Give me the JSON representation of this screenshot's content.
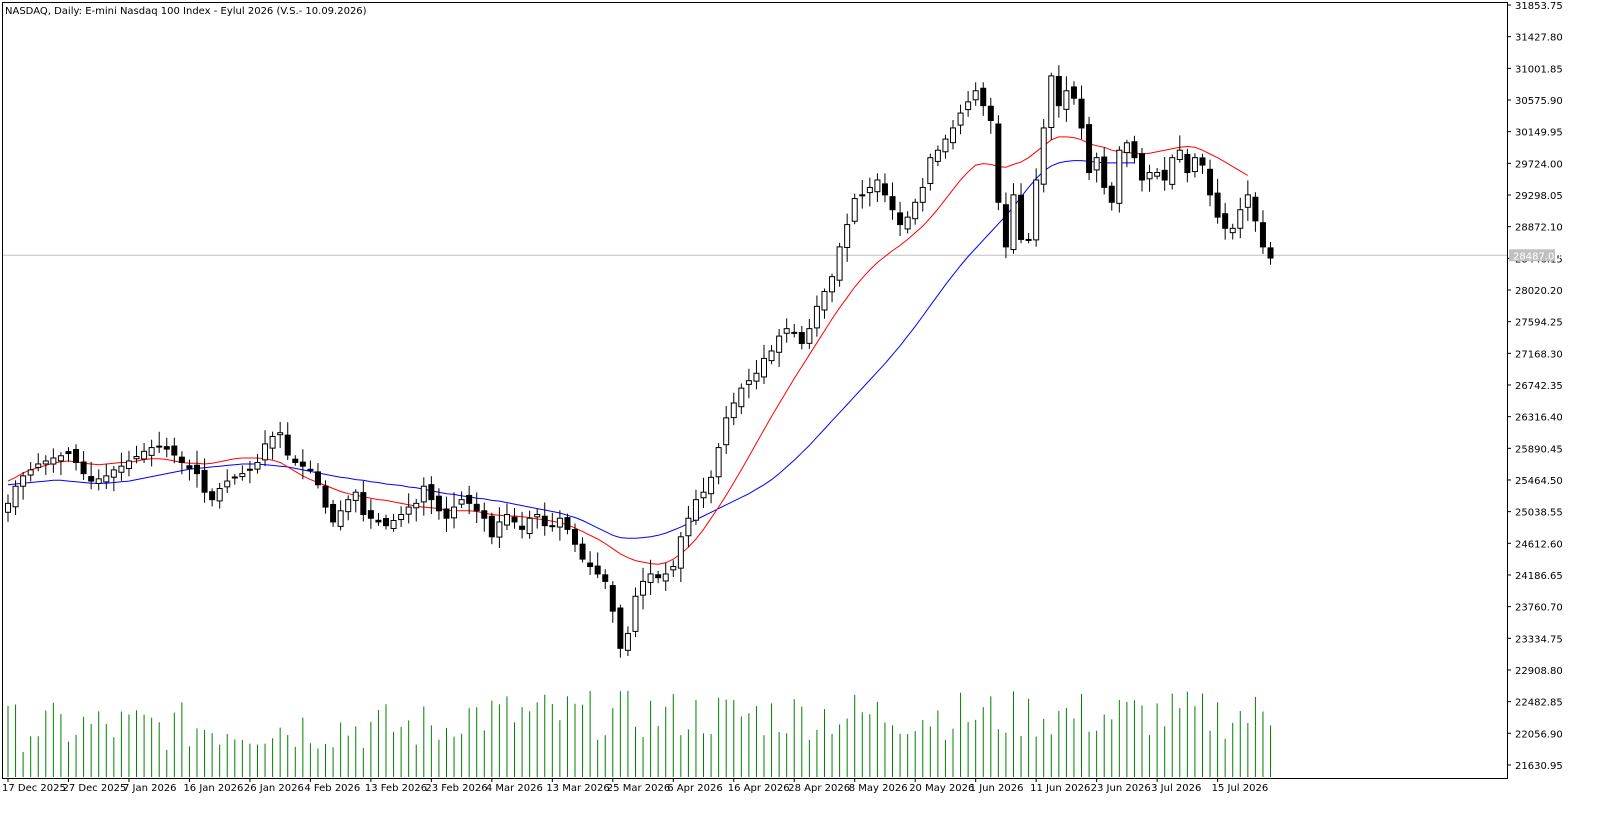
{
  "header": {
    "title": "NASDAQ, Daily:  E-mini Nasdaq 100 Index - Eylul 2026 (V.S.- 10.09.2026)"
  },
  "colors": {
    "background": "#ffffff",
    "frame": "#000000",
    "candle_up_fill": "#ffffff",
    "candle_down_fill": "#000000",
    "ma_fast": "#ff0000",
    "ma_slow": "#0000ff",
    "volume": "#008000",
    "last_price_line": "#c0c0c0",
    "last_price_label": "#c0c0c0"
  },
  "chart_data": {
    "type": "candlestick",
    "timeframe": "Daily",
    "ylim": [
      21200,
      31853.75
    ],
    "y_ticks": [
      "31853.75",
      "31427.80",
      "31001.85",
      "30575.90",
      "30149.95",
      "29724.00",
      "29298.05",
      "28872.10",
      "28446.15",
      "28020.20",
      "27594.25",
      "27168.30",
      "26742.35",
      "26316.40",
      "25890.45",
      "25464.50",
      "25038.55",
      "24612.60",
      "24186.65",
      "23760.70",
      "23334.75",
      "22908.80",
      "22482.85",
      "22056.90",
      "21630.95"
    ],
    "x_ticks": [
      {
        "label": "17 Dec 2025",
        "index": 0
      },
      {
        "label": "27 Dec 2025",
        "index": 8
      },
      {
        "label": "7 Jan 2026",
        "index": 16
      },
      {
        "label": "16 Jan 2026",
        "index": 24
      },
      {
        "label": "26 Jan 2026",
        "index": 32
      },
      {
        "label": "4 Feb 2026",
        "index": 40
      },
      {
        "label": "13 Feb 2026",
        "index": 48
      },
      {
        "label": "23 Feb 2026",
        "index": 56
      },
      {
        "label": "4 Mar 2026",
        "index": 64
      },
      {
        "label": "13 Mar 2026",
        "index": 72
      },
      {
        "label": "25 Mar 2026",
        "index": 80
      },
      {
        "label": "6 Apr 2026",
        "index": 88
      },
      {
        "label": "16 Apr 2026",
        "index": 96
      },
      {
        "label": "28 Apr 2026",
        "index": 104
      },
      {
        "label": "8 May 2026",
        "index": 112
      },
      {
        "label": "20 May 2026",
        "index": 120
      },
      {
        "label": "1 Jun 2026",
        "index": 128
      },
      {
        "label": "11 Jun 2026",
        "index": 136
      },
      {
        "label": "23 Jun 2026",
        "index": 144
      },
      {
        "label": "3 Jul 2026",
        "index": 152
      },
      {
        "label": "15 Jul 2026",
        "index": 160
      }
    ],
    "last_price": "28487.00",
    "closes": [
      25150,
      25380,
      25520,
      25600,
      25680,
      25720,
      25760,
      25790,
      25820,
      25700,
      25550,
      25450,
      25480,
      25520,
      25600,
      25650,
      25720,
      25780,
      25850,
      25900,
      25920,
      25880,
      25800,
      25700,
      25620,
      25550,
      25300,
      25200,
      25350,
      25450,
      25500,
      25550,
      25600,
      25700,
      25950,
      26050,
      26100,
      25800,
      25700,
      25650,
      25600,
      25400,
      25100,
      24900,
      25050,
      25200,
      25300,
      25000,
      24950,
      24900,
      24850,
      24920,
      25000,
      25100,
      25150,
      25380,
      25200,
      25050,
      24950,
      25100,
      25200,
      25150,
      25050,
      24950,
      24700,
      24900,
      25000,
      24900,
      24800,
      24950,
      25000,
      24850,
      24850,
      24950,
      24800,
      24600,
      24400,
      24300,
      24200,
      24100,
      23700,
      23200,
      23400,
      23900,
      24100,
      24200,
      24150,
      24200,
      24300,
      24700,
      24950,
      25200,
      25300,
      25500,
      25900,
      26300,
      26500,
      26700,
      26800,
      26900,
      27100,
      27200,
      27400,
      27500,
      27450,
      27300,
      27500,
      27800,
      28000,
      28200,
      28600,
      28900,
      29250,
      29300,
      29400,
      29500,
      29300,
      29100,
      28900,
      29000,
      29200,
      29400,
      29800,
      29900,
      30050,
      30200,
      30400,
      30550,
      30700,
      30500,
      30300,
      29200,
      28600,
      29300,
      28700,
      28700,
      29500,
      30200,
      30900,
      30500,
      30700,
      30600,
      30200,
      29600,
      29800,
      29400,
      29200,
      29900,
      30000,
      29800,
      29500,
      29600,
      29600,
      29500,
      29800,
      29900,
      29600,
      29800,
      29700,
      29300,
      29000,
      28850,
      28850,
      29100,
      29300,
      28950,
      28600,
      28450
    ],
    "ma_fast": [
      25450,
      25500,
      25560,
      25600,
      25630,
      25660,
      25690,
      25710,
      25720,
      25710,
      25690,
      25680,
      25670,
      25680,
      25690,
      25700,
      25700,
      25720,
      25740,
      25750,
      25750,
      25740,
      25720,
      25700,
      25690,
      25690,
      25680,
      25690,
      25710,
      25730,
      25750,
      25760,
      25760,
      25760,
      25750,
      25730,
      25700,
      25640,
      25580,
      25520,
      25470,
      25430,
      25390,
      25350,
      25310,
      25280,
      25260,
      25240,
      25220,
      25200,
      25190,
      25170,
      25150,
      25130,
      25110,
      25100,
      25090,
      25080,
      25060,
      25050,
      25050,
      25050,
      25040,
      25020,
      25000,
      24990,
      24980,
      24980,
      24970,
      24960,
      24940,
      24930,
      24910,
      24890,
      24860,
      24820,
      24770,
      24720,
      24670,
      24610,
      24540,
      24470,
      24420,
      24380,
      24360,
      24340,
      24330,
      24350,
      24400,
      24470,
      24560,
      24670,
      24800,
      24950,
      25100,
      25260,
      25430,
      25600,
      25780,
      25960,
      26140,
      26320,
      26490,
      26660,
      26830,
      26990,
      27150,
      27310,
      27470,
      27630,
      27780,
      27920,
      28060,
      28180,
      28290,
      28390,
      28470,
      28550,
      28620,
      28700,
      28790,
      28880,
      28990,
      29110,
      29240,
      29370,
      29500,
      29610,
      29700,
      29720,
      29710,
      29680,
      29670,
      29710,
      29740,
      29800,
      29880,
      29960,
      30040,
      30080,
      30080,
      30070,
      30040,
      29990,
      29960,
      29940,
      29900,
      29880,
      29870,
      29860,
      29850,
      29860,
      29880,
      29900,
      29920,
      29940,
      29950,
      29940,
      29900,
      29850,
      29800,
      29740,
      29680,
      29620,
      29560
    ],
    "ma_slow": [
      25400,
      25410,
      25420,
      25430,
      25440,
      25450,
      25460,
      25460,
      25450,
      25440,
      25430,
      25420,
      25420,
      25420,
      25430,
      25440,
      25450,
      25470,
      25490,
      25510,
      25530,
      25550,
      25570,
      25590,
      25610,
      25620,
      25630,
      25640,
      25650,
      25660,
      25670,
      25680,
      25680,
      25680,
      25670,
      25660,
      25650,
      25640,
      25620,
      25600,
      25580,
      25560,
      25540,
      25520,
      25500,
      25490,
      25470,
      25460,
      25440,
      25430,
      25410,
      25400,
      25390,
      25370,
      25360,
      25340,
      25320,
      25300,
      25280,
      25270,
      25250,
      25240,
      25220,
      25210,
      25190,
      25180,
      25160,
      25140,
      25120,
      25100,
      25080,
      25060,
      25040,
      25020,
      24990,
      24960,
      24920,
      24870,
      24820,
      24770,
      24720,
      24690,
      24680,
      24680,
      24690,
      24700,
      24720,
      24750,
      24790,
      24830,
      24880,
      24930,
      24980,
      25030,
      25080,
      25130,
      25180,
      25230,
      25280,
      25340,
      25400,
      25470,
      25550,
      25640,
      25730,
      25830,
      25930,
      26040,
      26150,
      26260,
      26370,
      26480,
      26590,
      26700,
      26810,
      26920,
      27030,
      27150,
      27270,
      27400,
      27530,
      27670,
      27810,
      27950,
      28090,
      28220,
      28350,
      28470,
      28580,
      28690,
      28800,
      28910,
      29020,
      29140,
      29270,
      29400,
      29520,
      29620,
      29690,
      29730,
      29750,
      29760,
      29760,
      29750,
      29740,
      29730,
      29730,
      29730,
      29730,
      29730
    ]
  }
}
